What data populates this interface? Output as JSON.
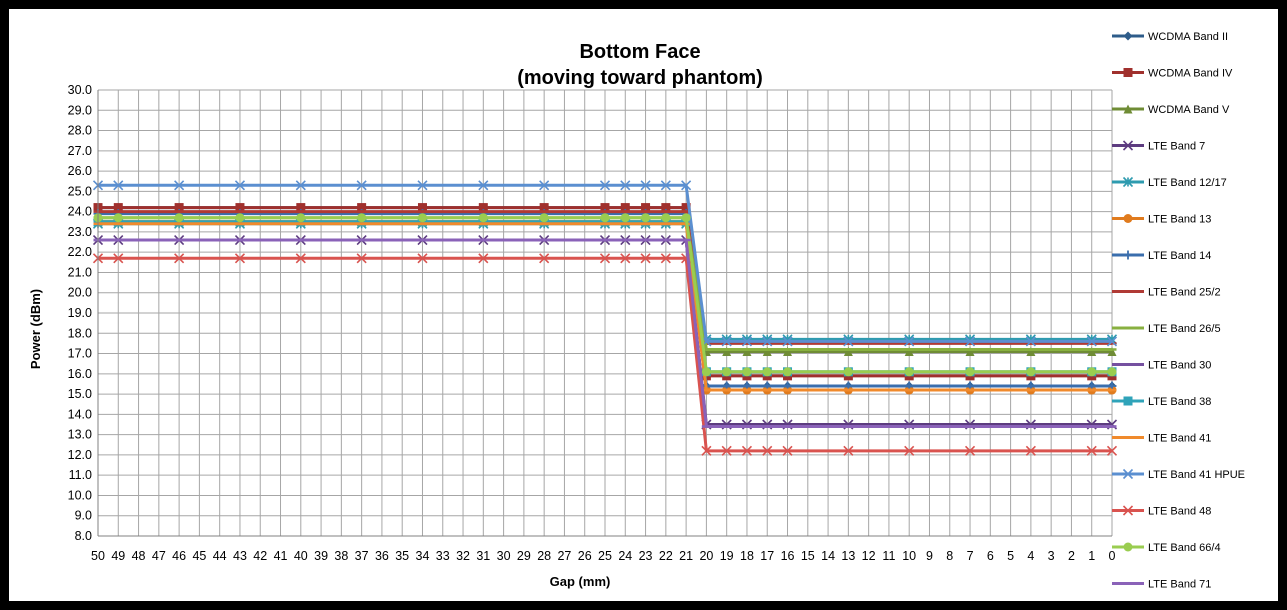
{
  "chart_data": {
    "type": "line",
    "title_line1": "Bottom Face",
    "title_line2": "(moving toward phantom)",
    "xlabel": "Gap (mm)",
    "ylabel": "Power (dBm)",
    "ylim": [
      8.0,
      30.0
    ],
    "y_ticks": [
      "8.0",
      "9.0",
      "10.0",
      "11.0",
      "12.0",
      "13.0",
      "14.0",
      "15.0",
      "16.0",
      "17.0",
      "18.0",
      "19.0",
      "20.0",
      "21.0",
      "22.0",
      "23.0",
      "24.0",
      "25.0",
      "26.0",
      "27.0",
      "28.0",
      "29.0",
      "30.0"
    ],
    "categories": [
      "50",
      "49",
      "48",
      "47",
      "46",
      "45",
      "44",
      "43",
      "42",
      "41",
      "40",
      "39",
      "38",
      "37",
      "36",
      "35",
      "34",
      "33",
      "32",
      "31",
      "30",
      "29",
      "28",
      "27",
      "26",
      "25",
      "24",
      "23",
      "22",
      "21",
      "20",
      "19",
      "18",
      "17",
      "16",
      "15",
      "14",
      "13",
      "12",
      "11",
      "10",
      "9",
      "8",
      "7",
      "6",
      "5",
      "4",
      "3",
      "2",
      "1",
      "0"
    ],
    "grid": true,
    "legend_position": "right",
    "series": [
      {
        "name": "WCDMA Band II",
        "color": "#2E5C8A",
        "marker": "diamond",
        "far": 24.2,
        "near": 15.4
      },
      {
        "name": "WCDMA Band IV",
        "color": "#A0302D",
        "marker": "square",
        "far": 24.2,
        "near": 15.9
      },
      {
        "name": "WCDMA Band V",
        "color": "#6F8C35",
        "marker": "triangle",
        "far": 23.5,
        "near": 17.1
      },
      {
        "name": "LTE Band 7",
        "color": "#5D3C80",
        "marker": "x",
        "far": 22.6,
        "near": 13.5
      },
      {
        "name": "LTE Band 12/17",
        "color": "#2E9BAF",
        "marker": "star",
        "far": 23.4,
        "near": 17.7
      },
      {
        "name": "LTE Band 13",
        "color": "#E07B1E",
        "marker": "circle",
        "far": 23.5,
        "near": 15.2
      },
      {
        "name": "LTE Band 14",
        "color": "#3A6EAD",
        "marker": "plus",
        "far": 23.9,
        "near": 15.4
      },
      {
        "name": "LTE Band 25/2",
        "color": "#B03A35",
        "marker": "dash",
        "far": 24.0,
        "near": 17.5
      },
      {
        "name": "LTE Band 26/5",
        "color": "#88B040",
        "marker": "dash",
        "far": 23.7,
        "near": 17.2
      },
      {
        "name": "LTE Band 30",
        "color": "#7550A0",
        "marker": "dash",
        "far": 22.6,
        "near": 13.4
      },
      {
        "name": "LTE Band 38",
        "color": "#2FA3B9",
        "marker": "square",
        "far": 23.5,
        "near": 16.1
      },
      {
        "name": "LTE Band 41",
        "color": "#F08A2C",
        "marker": "dash",
        "far": 23.4,
        "near": 15.2
      },
      {
        "name": "LTE Band 41 HPUE",
        "color": "#5B8FD0",
        "marker": "x",
        "far": 25.3,
        "near": 17.6
      },
      {
        "name": "LTE Band 48",
        "color": "#D9534F",
        "marker": "x",
        "far": 21.7,
        "near": 12.2
      },
      {
        "name": "LTE Band 66/4",
        "color": "#9ACD50",
        "marker": "circle",
        "far": 23.7,
        "near": 16.1
      },
      {
        "name": "LTE Band 71",
        "color": "#8A62B8",
        "marker": "dash",
        "far": 22.6,
        "near": 13.4
      }
    ],
    "measured_gaps": [
      "50",
      "49",
      "46",
      "43",
      "40",
      "37",
      "34",
      "31",
      "28",
      "25",
      "24",
      "23",
      "22",
      "21",
      "20",
      "19",
      "18",
      "17",
      "16",
      "13",
      "10",
      "7",
      "4",
      "1",
      "0"
    ],
    "step_between": [
      "21",
      "20"
    ]
  }
}
